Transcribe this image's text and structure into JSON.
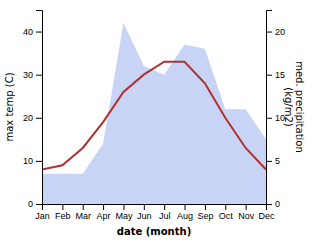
{
  "chart_data": {
    "type": "line",
    "categories": [
      "Jan",
      "Feb",
      "Mar",
      "Apr",
      "May",
      "Jun",
      "Jul",
      "Aug",
      "Sep",
      "Oct",
      "Nov",
      "Dec"
    ],
    "series": [
      {
        "type": "area",
        "color": "#c8d4f5",
        "values": [
          7,
          7,
          7,
          14,
          42,
          32,
          30,
          37,
          36,
          22,
          22,
          15
        ]
      },
      {
        "type": "line",
        "color": "#b03030",
        "values": [
          8,
          9,
          13,
          19,
          26,
          30,
          33,
          33,
          28,
          20,
          13,
          8
        ]
      }
    ],
    "ylim": [
      0,
      45
    ],
    "yticks": [
      0,
      10,
      20,
      30,
      40
    ],
    "y2lim": [
      0,
      22.5
    ],
    "y2ticks": [
      0,
      5,
      10,
      15,
      20
    ],
    "x_label": "date (month)",
    "y_label": "max temp (C)",
    "y2_label": "med. precipitation\n(kg/m2)",
    "grid": false
  }
}
